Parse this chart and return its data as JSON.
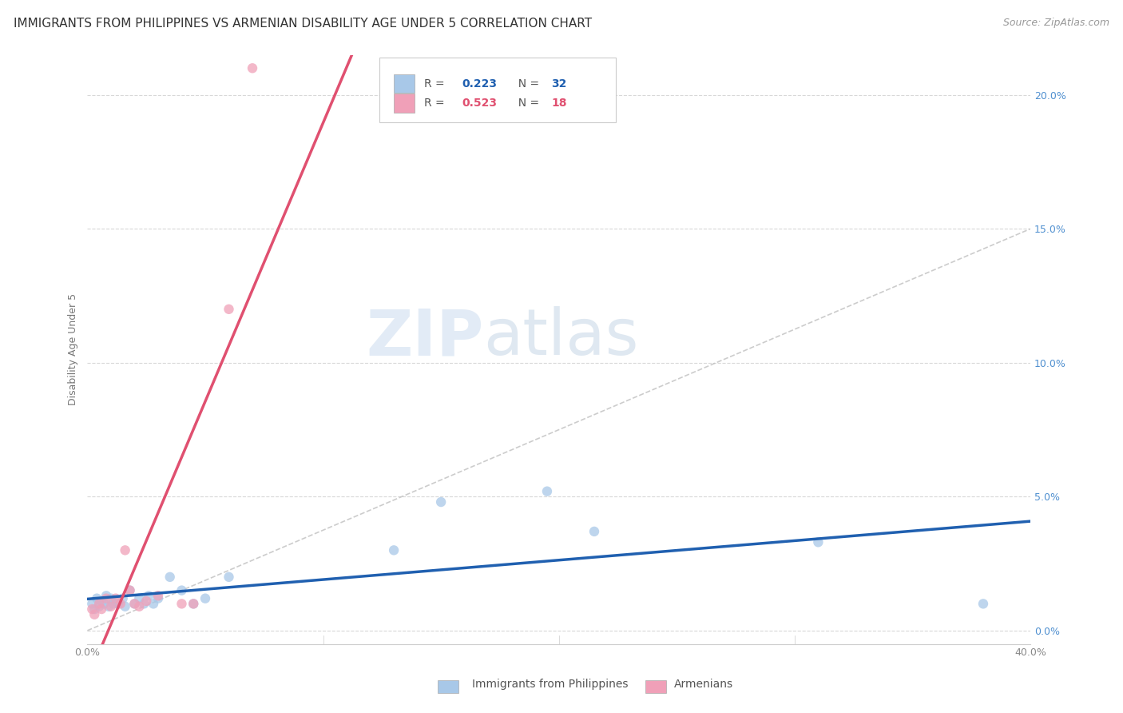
{
  "title": "IMMIGRANTS FROM PHILIPPINES VS ARMENIAN DISABILITY AGE UNDER 5 CORRELATION CHART",
  "source": "Source: ZipAtlas.com",
  "ylabel_label": "Disability Age Under 5",
  "xlim": [
    0.0,
    0.4
  ],
  "ylim": [
    -0.005,
    0.215
  ],
  "yticks": [
    0.0,
    0.05,
    0.1,
    0.15,
    0.2
  ],
  "ytick_labels": [
    "0.0%",
    "5.0%",
    "10.0%",
    "15.0%",
    "20.0%"
  ],
  "xtick_minor": [
    0.1,
    0.2,
    0.3
  ],
  "xtick_ends": [
    0.0,
    0.4
  ],
  "xtick_end_labels": [
    "0.0%",
    "40.0%"
  ],
  "watermark_zip": "ZIP",
  "watermark_atlas": "atlas",
  "legend_r1": "R = 0.223",
  "legend_n1": "N = 32",
  "legend_r2": "R = 0.523",
  "legend_n2": "N = 18",
  "legend_label1": "Immigrants from Philippines",
  "legend_label2": "Armenians",
  "philippines_x": [
    0.002,
    0.003,
    0.004,
    0.005,
    0.006,
    0.007,
    0.008,
    0.009,
    0.01,
    0.011,
    0.012,
    0.013,
    0.015,
    0.016,
    0.018,
    0.02,
    0.022,
    0.024,
    0.026,
    0.028,
    0.03,
    0.035,
    0.04,
    0.045,
    0.05,
    0.06,
    0.13,
    0.15,
    0.195,
    0.215,
    0.31,
    0.38
  ],
  "philippines_y": [
    0.01,
    0.008,
    0.012,
    0.009,
    0.011,
    0.01,
    0.013,
    0.009,
    0.012,
    0.01,
    0.011,
    0.01,
    0.012,
    0.009,
    0.015,
    0.01,
    0.012,
    0.01,
    0.013,
    0.01,
    0.012,
    0.02,
    0.015,
    0.01,
    0.012,
    0.02,
    0.03,
    0.048,
    0.052,
    0.037,
    0.033,
    0.01
  ],
  "armenian_x": [
    0.002,
    0.003,
    0.005,
    0.006,
    0.008,
    0.01,
    0.012,
    0.014,
    0.016,
    0.018,
    0.02,
    0.022,
    0.025,
    0.03,
    0.04,
    0.045,
    0.06,
    0.07
  ],
  "armenian_y": [
    0.008,
    0.006,
    0.01,
    0.008,
    0.012,
    0.009,
    0.012,
    0.01,
    0.03,
    0.015,
    0.01,
    0.009,
    0.011,
    0.013,
    0.01,
    0.01,
    0.12,
    0.21
  ],
  "philippines_color": "#A8C8E8",
  "armenian_color": "#F0A0B8",
  "philippines_line_color": "#2060B0",
  "armenian_line_color": "#E05070",
  "identity_line_color": "#C0C0C0",
  "grid_color": "#D8D8D8",
  "background_color": "#FFFFFF",
  "title_fontsize": 11,
  "axis_label_fontsize": 9,
  "tick_fontsize": 9,
  "tick_color_y": "#5090D0",
  "marker_size": 80
}
